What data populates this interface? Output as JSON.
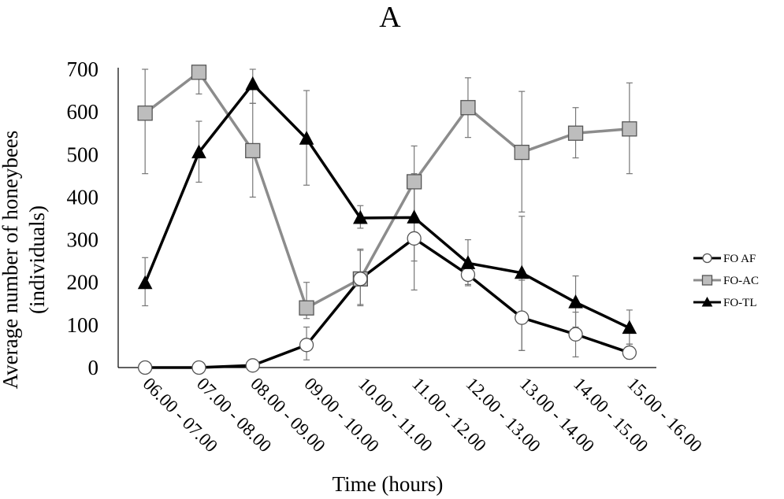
{
  "chart_data": {
    "type": "line",
    "title": "A",
    "xlabel": "Time (hours)",
    "ylabel_line1": "Average number of honeybees",
    "ylabel_line2": "(individuals)",
    "ylim": [
      0,
      700
    ],
    "yticks": [
      "0",
      "100",
      "200",
      "300",
      "400",
      "500",
      "600",
      "700"
    ],
    "ytick_values": [
      0,
      100,
      200,
      300,
      400,
      500,
      600,
      700
    ],
    "categories": [
      "06.00 - 07.00",
      "07.00 - 08.00",
      "08.00 - 09.00",
      "09.00 - 10.00",
      "10.00 - 11.00",
      "11.00 - 12.00",
      "12.00 - 13.00",
      "13.00 - 14.00",
      "14.00 - 15.00",
      "15.00 - 16.00"
    ],
    "legend_position": "right",
    "series": [
      {
        "name": "FO AF",
        "marker": "circle",
        "line_color": "#000000",
        "values": [
          0,
          0,
          5,
          53,
          208,
          303,
          218,
          117,
          78,
          35
        ],
        "error_low": [
          0,
          0,
          0,
          18,
          145,
          182,
          195,
          40,
          25,
          20
        ],
        "error_high": [
          0,
          0,
          0,
          95,
          275,
          425,
          240,
          205,
          130,
          55
        ]
      },
      {
        "name": "FO-AC",
        "marker": "square",
        "line_color": "#8c8c8c",
        "values": [
          597,
          693,
          509,
          140,
          208,
          436,
          610,
          505,
          550,
          560
        ],
        "error_low": [
          455,
          642,
          400,
          115,
          148,
          350,
          540,
          365,
          492,
          455
        ],
        "error_high": [
          700,
          700,
          620,
          200,
          278,
          520,
          680,
          648,
          610,
          668
        ]
      },
      {
        "name": "FO-TL",
        "marker": "triangle",
        "line_color": "#000000",
        "values": [
          198,
          505,
          665,
          537,
          351,
          352,
          245,
          222,
          153,
          93
        ],
        "error_low": [
          145,
          435,
          620,
          428,
          327,
          250,
          192,
          40,
          95,
          55
        ],
        "error_high": [
          258,
          578,
          700,
          650,
          380,
          455,
          300,
          355,
          215,
          135
        ]
      }
    ]
  }
}
